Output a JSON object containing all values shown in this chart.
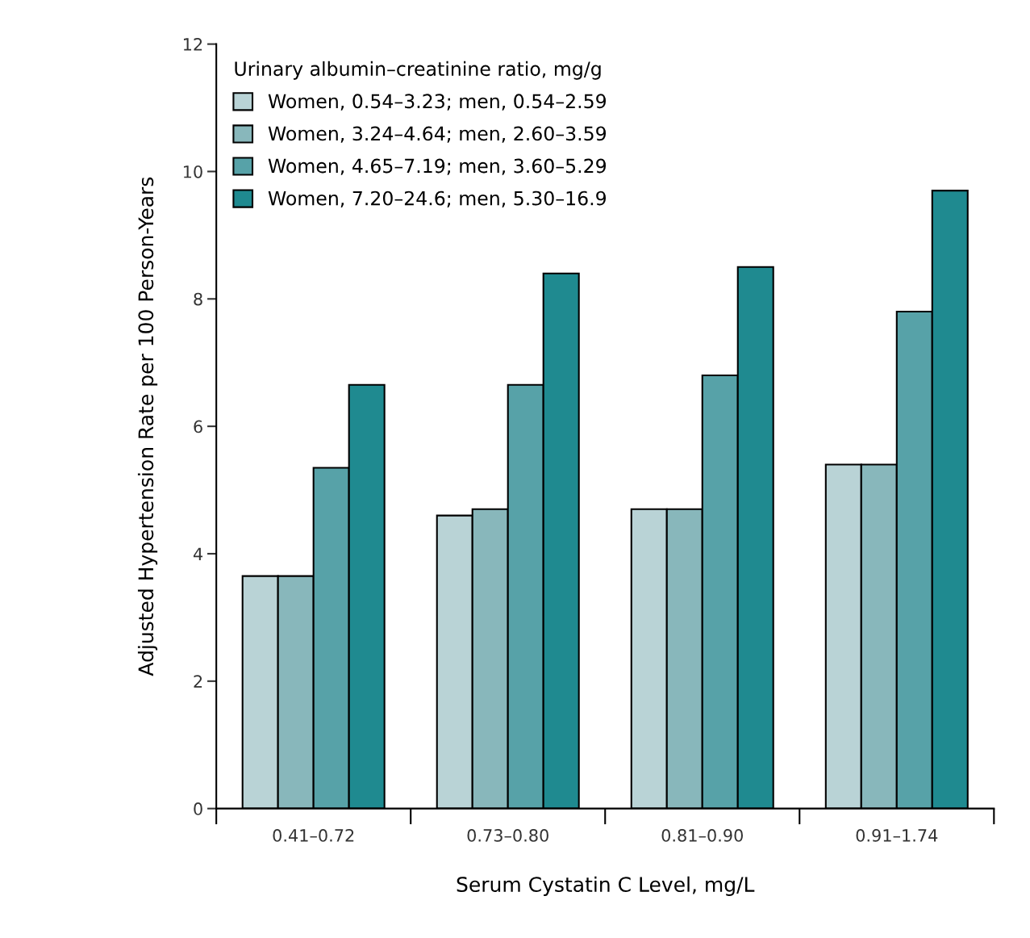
{
  "chart_data": {
    "type": "bar",
    "xlabel": "Serum Cystatin C Level, mg/L",
    "ylabel": "Adjusted Hypertension Rate per 100 Person-Years",
    "legend_title": "Urinary albumin–creatinine ratio, mg/g",
    "legend": "top left",
    "grid": false,
    "categories": [
      "0.41–0.72",
      "0.73–0.80",
      "0.81–0.90",
      "0.91–1.74"
    ],
    "ylim": [
      0,
      12
    ],
    "yticks": [
      0,
      2,
      4,
      6,
      8,
      10,
      12
    ],
    "series": [
      {
        "name": "Women, 0.54–3.23; men, 0.54–2.59",
        "color": "#b9d3d6",
        "values": [
          3.65,
          4.6,
          4.7,
          5.4
        ]
      },
      {
        "name": "Women, 3.24–4.64; men, 2.60–3.59",
        "color": "#88b7bb",
        "values": [
          3.65,
          4.7,
          4.7,
          5.4
        ]
      },
      {
        "name": "Women, 4.65–7.19; men, 3.60–5.29",
        "color": "#57a2a8",
        "values": [
          5.35,
          6.65,
          6.8,
          7.8
        ]
      },
      {
        "name": "Women, 7.20–24.6; men, 5.30–16.9",
        "color": "#1f8a90",
        "values": [
          6.65,
          8.4,
          8.5,
          9.7
        ]
      }
    ]
  }
}
